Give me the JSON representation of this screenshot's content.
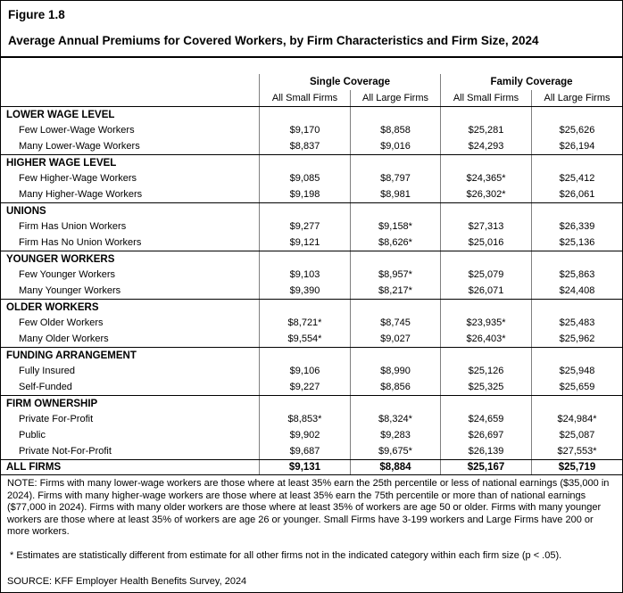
{
  "figure": {
    "label": "Figure 1.8",
    "title": "Average Annual Premiums for Covered Workers, by Firm Characteristics and Firm Size, 2024"
  },
  "table": {
    "group_headers": {
      "single": "Single Coverage",
      "family": "Family Coverage"
    },
    "column_headers": [
      "All Small Firms",
      "All Large Firms",
      "All Small Firms",
      "All Large Firms"
    ],
    "rows": [
      {
        "type": "section",
        "label": "LOWER WAGE LEVEL",
        "values": [
          "",
          "",
          "",
          ""
        ]
      },
      {
        "type": "data",
        "label": "Few Lower-Wage Workers",
        "values": [
          "$9,170",
          "$8,858",
          "$25,281",
          "$25,626"
        ]
      },
      {
        "type": "data",
        "label": "Many Lower-Wage Workers",
        "values": [
          "$8,837",
          "$9,016",
          "$24,293",
          "$26,194"
        ]
      },
      {
        "type": "section",
        "label": "HIGHER WAGE LEVEL",
        "values": [
          "",
          "",
          "",
          ""
        ]
      },
      {
        "type": "data",
        "label": "Few Higher-Wage Workers",
        "values": [
          "$9,085",
          "$8,797",
          "$24,365*",
          "$25,412"
        ]
      },
      {
        "type": "data",
        "label": "Many Higher-Wage Workers",
        "values": [
          "$9,198",
          "$8,981",
          "$26,302*",
          "$26,061"
        ]
      },
      {
        "type": "section",
        "label": "UNIONS",
        "values": [
          "",
          "",
          "",
          ""
        ]
      },
      {
        "type": "data",
        "label": "Firm Has Union Workers",
        "values": [
          "$9,277",
          "$9,158*",
          "$27,313",
          "$26,339"
        ]
      },
      {
        "type": "data",
        "label": "Firm Has No Union Workers",
        "values": [
          "$9,121",
          "$8,626*",
          "$25,016",
          "$25,136"
        ]
      },
      {
        "type": "section",
        "label": "YOUNGER WORKERS",
        "values": [
          "",
          "",
          "",
          ""
        ]
      },
      {
        "type": "data",
        "label": "Few Younger Workers",
        "values": [
          "$9,103",
          "$8,957*",
          "$25,079",
          "$25,863"
        ]
      },
      {
        "type": "data",
        "label": "Many Younger Workers",
        "values": [
          "$9,390",
          "$8,217*",
          "$26,071",
          "$24,408"
        ]
      },
      {
        "type": "section",
        "label": "OLDER WORKERS",
        "values": [
          "",
          "",
          "",
          ""
        ]
      },
      {
        "type": "data",
        "label": "Few Older Workers",
        "values": [
          "$8,721*",
          "$8,745",
          "$23,935*",
          "$25,483"
        ]
      },
      {
        "type": "data",
        "label": "Many Older Workers",
        "values": [
          "$9,554*",
          "$9,027",
          "$26,403*",
          "$25,962"
        ]
      },
      {
        "type": "section",
        "label": "FUNDING ARRANGEMENT",
        "values": [
          "",
          "",
          "",
          ""
        ]
      },
      {
        "type": "data",
        "label": "Fully Insured",
        "values": [
          "$9,106",
          "$8,990",
          "$25,126",
          "$25,948"
        ]
      },
      {
        "type": "data",
        "label": "Self-Funded",
        "values": [
          "$9,227",
          "$8,856",
          "$25,325",
          "$25,659"
        ]
      },
      {
        "type": "section",
        "label": "FIRM OWNERSHIP",
        "values": [
          "",
          "",
          "",
          ""
        ]
      },
      {
        "type": "data",
        "label": "Private For-Profit",
        "values": [
          "$8,853*",
          "$8,324*",
          "$24,659",
          "$24,984*"
        ]
      },
      {
        "type": "data",
        "label": "Public",
        "values": [
          "$9,902",
          "$9,283",
          "$26,697",
          "$25,087"
        ]
      },
      {
        "type": "data",
        "label": "Private Not-For-Profit",
        "values": [
          "$9,687",
          "$9,675*",
          "$26,139",
          "$27,553*"
        ]
      },
      {
        "type": "total",
        "label": "ALL FIRMS",
        "values": [
          "$9,131",
          "$8,884",
          "$25,167",
          "$25,719"
        ]
      }
    ]
  },
  "footnotes": {
    "note": "NOTE: Firms with many lower-wage workers are those where at least 35% earn the 25th percentile or less of national earnings ($35,000 in 2024). Firms with many higher-wage workers are those where at least 35% earn the 75th percentile or more than of national earnings ($77,000 in 2024). Firms with many older workers are those where at least 35% of workers are age 50 or older. Firms with many younger workers are those where at least 35% of workers are age 26 or younger. Small Firms have 3-199 workers and Large Firms have 200 or more workers.",
    "significance": "* Estimates are statistically different from estimate for all other firms not in the indicated category within each firm size (p < .05).",
    "source": "SOURCE: KFF Employer Health Benefits Survey, 2024"
  },
  "colors": {
    "background": "#ffffff",
    "text": "#000000",
    "section_line": "#000000",
    "grid_line": "#808080"
  }
}
